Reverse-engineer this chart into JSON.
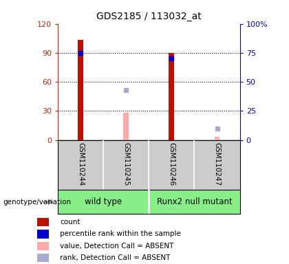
{
  "title": "GDS2185 / 113032_at",
  "samples": [
    "GSM110244",
    "GSM110245",
    "GSM110246",
    "GSM110247"
  ],
  "bar_positions": [
    0,
    1,
    2,
    3
  ],
  "count_values": [
    103,
    null,
    90,
    null
  ],
  "count_color": "#bb1100",
  "percentile_values": [
    75,
    null,
    70,
    null
  ],
  "percentile_color": "#0000cc",
  "absent_value_values": [
    null,
    28,
    null,
    3
  ],
  "absent_value_color": "#ffaaaa",
  "absent_rank_values": [
    null,
    43,
    null,
    10
  ],
  "absent_rank_color": "#aaaacc",
  "bar_width": 0.12,
  "ylim_left": [
    0,
    120
  ],
  "ylim_right": [
    0,
    100
  ],
  "yticks_left": [
    0,
    30,
    60,
    90,
    120
  ],
  "yticks_right": [
    0,
    25,
    50,
    75,
    100
  ],
  "ytick_labels_left": [
    "0",
    "30",
    "60",
    "90",
    "120"
  ],
  "ytick_labels_right": [
    "0",
    "25",
    "50",
    "75",
    "100%"
  ],
  "left_axis_color": "#cc2200",
  "right_axis_color": "#0000cc",
  "legend_items": [
    {
      "label": "count",
      "color": "#bb1100"
    },
    {
      "label": "percentile rank within the sample",
      "color": "#0000cc"
    },
    {
      "label": "value, Detection Call = ABSENT",
      "color": "#ffaaaa"
    },
    {
      "label": "rank, Detection Call = ABSENT",
      "color": "#aaaacc"
    }
  ],
  "group_label": "genotype/variation",
  "sample_bg": "#cccccc",
  "group_bg": "#88ee88",
  "group1_label": "wild type",
  "group2_label": "Runx2 null mutant",
  "grid_ticks": [
    30,
    60,
    90
  ],
  "plot_bg": "#ffffff"
}
